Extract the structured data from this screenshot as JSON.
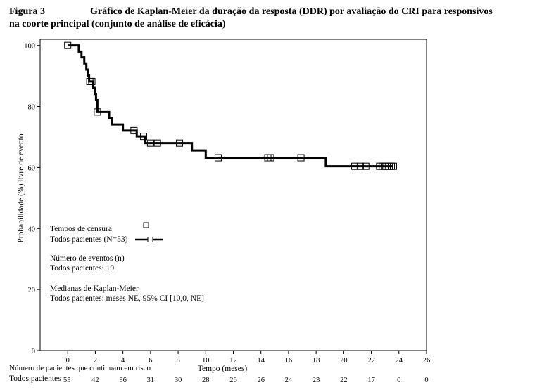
{
  "heading": {
    "label": "Figura 3",
    "title_line1": "Gráfico de Kaplan-Meier da duração da resposta (DDR) por avaliação do CRI para responsivos",
    "title_line2": "na coorte principal (conjunto de análise de eficácia)"
  },
  "chart_data": {
    "type": "line",
    "title": "Gráfico de Kaplan-Meier da duração da resposta (DDR) por avaliação do CRI para responsivos na coorte principal (conjunto de análise de eficácia)",
    "xlabel": "Tempo (meses)",
    "ylabel": "Probabilidade (%) livre de evento",
    "xlim": [
      -2,
      26
    ],
    "ylim": [
      0,
      102
    ],
    "xticks": [
      0,
      2,
      4,
      6,
      8,
      10,
      12,
      14,
      16,
      18,
      20,
      22,
      24,
      26
    ],
    "yticks": [
      0,
      20,
      40,
      60,
      80,
      100
    ],
    "grid": false,
    "series": [
      {
        "name": "Todos pacientes (N=53)",
        "step": [
          [
            0,
            100
          ],
          [
            0.6,
            100
          ],
          [
            0.8,
            98
          ],
          [
            1.0,
            96.1
          ],
          [
            1.2,
            94.1
          ],
          [
            1.35,
            92.1
          ],
          [
            1.45,
            90.1
          ],
          [
            1.55,
            88.2
          ],
          [
            1.85,
            86.1
          ],
          [
            1.95,
            84.1
          ],
          [
            2.05,
            82.1
          ],
          [
            2.15,
            78.2
          ],
          [
            3.0,
            76.2
          ],
          [
            3.2,
            74.1
          ],
          [
            4.0,
            72.1
          ],
          [
            5.0,
            70.2
          ],
          [
            5.6,
            68.0
          ],
          [
            9.0,
            65.6
          ],
          [
            10.0,
            63.2
          ],
          [
            18.7,
            60.4
          ],
          [
            23.6,
            60.4
          ]
        ],
        "censored": [
          [
            0,
            100
          ],
          [
            1.6,
            88.2
          ],
          [
            1.75,
            88.2
          ],
          [
            2.15,
            78.2
          ],
          [
            4.8,
            72.1
          ],
          [
            5.5,
            70.2
          ],
          [
            6.0,
            68.0
          ],
          [
            6.5,
            68.0
          ],
          [
            8.1,
            68.0
          ],
          [
            10.9,
            63.2
          ],
          [
            14.5,
            63.2
          ],
          [
            14.7,
            63.2
          ],
          [
            16.9,
            63.2
          ],
          [
            20.8,
            60.4
          ],
          [
            21.2,
            60.4
          ],
          [
            21.6,
            60.4
          ],
          [
            22.6,
            60.4
          ],
          [
            22.8,
            60.4
          ],
          [
            23.0,
            60.4
          ],
          [
            23.15,
            60.4
          ],
          [
            23.3,
            60.4
          ],
          [
            23.45,
            60.4
          ],
          [
            23.6,
            60.4
          ]
        ]
      }
    ],
    "legend": {
      "censor_label": "Tempos de censura",
      "series_label": "Todos pacientes (N=53)",
      "events_title": "Número de eventos (n)",
      "events_value": "Todos pacientes: 19",
      "median_title": "Medianas de Kaplan-Meier",
      "median_value": "Todos pacientes: meses NE, 95% CI [10,0, NE]"
    },
    "risk_table": {
      "header": "Número de pacientes que continuam em risco",
      "row_label": "Todos pacientes",
      "first_value": "53",
      "values": [
        "42",
        "36",
        "31",
        "30",
        "28",
        "26",
        "26",
        "24",
        "23",
        "22",
        "17",
        "0",
        "0"
      ]
    }
  }
}
